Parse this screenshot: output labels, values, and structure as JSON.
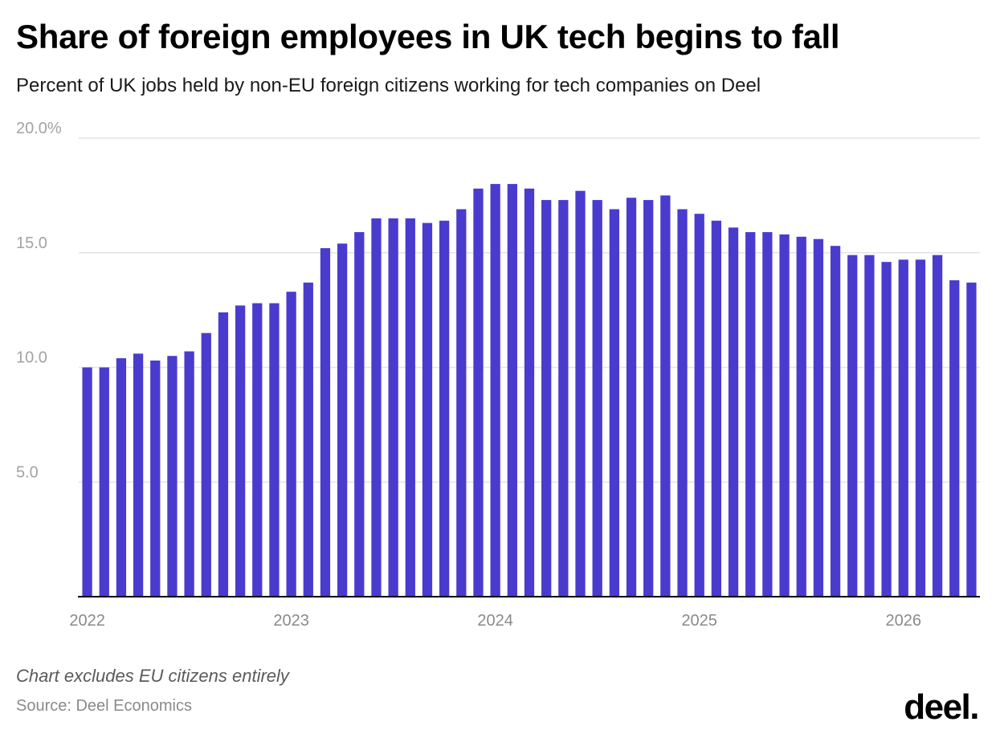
{
  "header": {
    "title": "Share of foreign employees in UK tech begins to fall",
    "subtitle": "Percent of UK jobs held by non-EU foreign citizens working for tech companies on Deel"
  },
  "footer": {
    "note": "Chart excludes EU citizens entirely",
    "source": "Source: Deel Economics",
    "logo_text": "deel."
  },
  "colors": {
    "bar": "#4a3bcf",
    "grid": "#e4e4e4",
    "axis": "#000000"
  },
  "chart_data": {
    "type": "bar",
    "title": "Share of foreign employees in UK tech begins to fall",
    "subtitle": "Percent of UK jobs held by non-EU foreign citizens working for tech companies on Deel",
    "ylim": [
      0,
      20
    ],
    "y_ticks": [
      {
        "value": 5,
        "label": "5.0"
      },
      {
        "value": 10,
        "label": "10.0"
      },
      {
        "value": 15,
        "label": "15.0"
      },
      {
        "value": 20,
        "label": "20.0%"
      }
    ],
    "x_ticks": [
      "2022",
      "2023",
      "2024",
      "2025",
      "2026"
    ],
    "grid": true,
    "categories": [
      "2022-01",
      "2022-02",
      "2022-03",
      "2022-04",
      "2022-05",
      "2022-06",
      "2022-07",
      "2022-08",
      "2022-09",
      "2022-10",
      "2022-11",
      "2022-12",
      "2023-01",
      "2023-02",
      "2023-03",
      "2023-04",
      "2023-05",
      "2023-06",
      "2023-07",
      "2023-08",
      "2023-09",
      "2023-10",
      "2023-11",
      "2023-12",
      "2024-01",
      "2024-02",
      "2024-03",
      "2024-04",
      "2024-05",
      "2024-06",
      "2024-07",
      "2024-08",
      "2024-09",
      "2024-10",
      "2024-11",
      "2024-12",
      "2025-01",
      "2025-02",
      "2025-03",
      "2025-04",
      "2025-05",
      "2025-06",
      "2025-07",
      "2025-08",
      "2025-09",
      "2025-10",
      "2025-11",
      "2025-12",
      "2026-01",
      "2026-02",
      "2026-03",
      "2026-04",
      "2026-05"
    ],
    "values": [
      10.0,
      10.0,
      10.4,
      10.6,
      10.3,
      10.5,
      10.7,
      11.5,
      12.4,
      12.7,
      12.8,
      12.8,
      13.3,
      13.7,
      15.2,
      15.4,
      15.9,
      16.5,
      16.5,
      16.5,
      16.3,
      16.4,
      16.9,
      17.8,
      18.0,
      18.0,
      17.8,
      17.3,
      17.3,
      17.7,
      17.3,
      16.9,
      17.4,
      17.3,
      17.5,
      16.9,
      16.7,
      16.4,
      16.1,
      15.9,
      15.9,
      15.8,
      15.7,
      15.6,
      15.3,
      14.9,
      14.9,
      14.6,
      14.7,
      14.7,
      14.9,
      13.8,
      13.7
    ]
  }
}
